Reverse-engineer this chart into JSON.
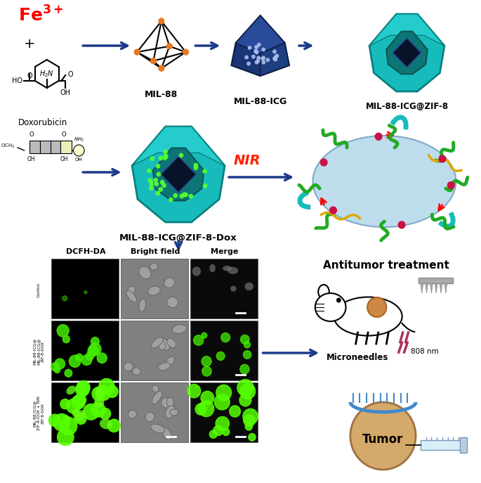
{
  "fe3_color": "#FF0000",
  "arrow_color": "#1B3A8A",
  "orange_node": "#E87820",
  "teal_color": "#18BBBB",
  "teal_dark": "#0D7575",
  "teal_darker": "#083535",
  "dark_blue_crystal": "#1A3575",
  "dark_blue2": "#2A4A9A",
  "bg_color": "#FFFFFF",
  "col_headers": [
    "DCFH-DA",
    "Bright field",
    "Merge"
  ],
  "antitumor_title": "Antitumor treatment",
  "microneedles_label": "Microneedles",
  "nm_label": "808 nm",
  "tumor_label": "Tumor",
  "tumor_color": "#D4A96A",
  "blue_ring_color": "#4488CC",
  "nir_color": "#FF2200",
  "green_dot": "#44EE00",
  "row1_labels": [
    "MIL-88",
    "MIL-88-ICG",
    "MIL-88-ICG@ZIF-8"
  ],
  "dox_label": "Doxorubicin",
  "dox_label2": "MIL-88-ICG@ZIF-8-Dox"
}
